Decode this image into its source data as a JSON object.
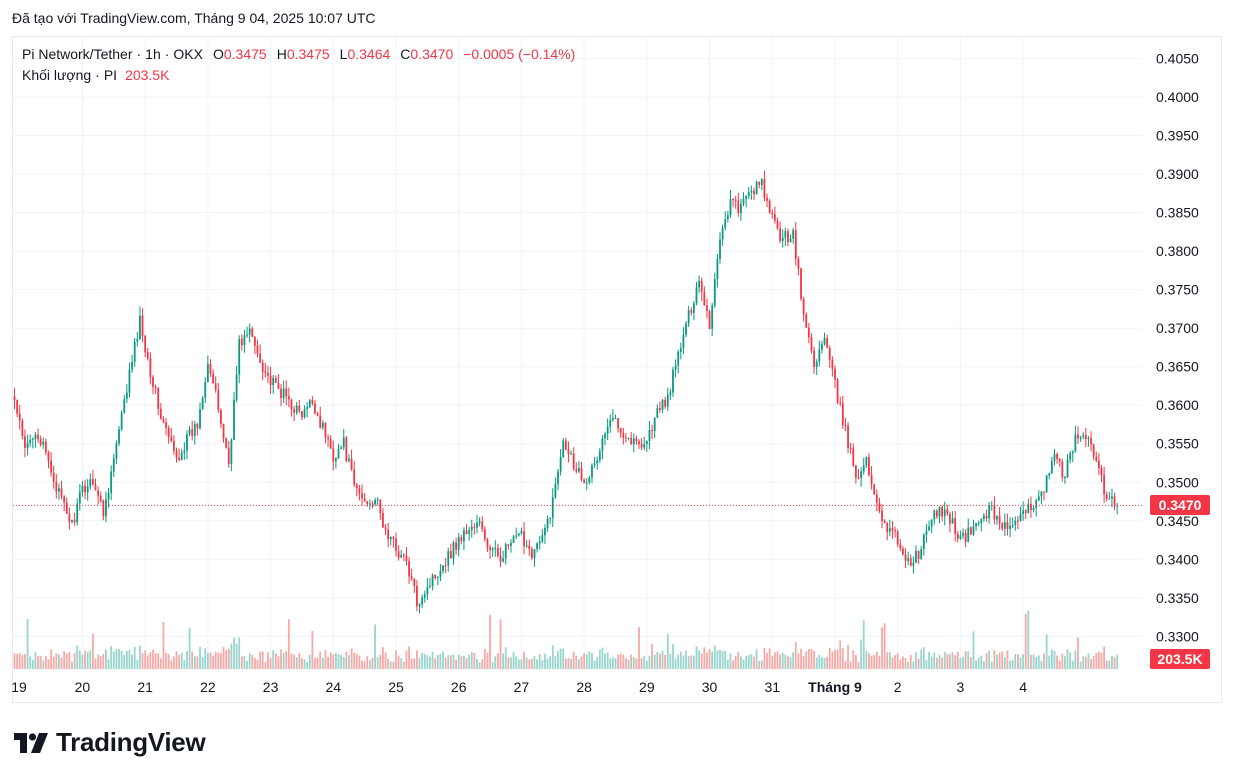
{
  "caption": "Đã tạo với TradingView.com, Tháng 9 04, 2025 10:07 UTC",
  "legend": {
    "symbol": "Pi Network/Tether",
    "interval": "1h",
    "exchange": "OKX",
    "open_label": "O",
    "open": "0.3475",
    "high_label": "H",
    "high": "0.3475",
    "low_label": "L",
    "low": "0.3464",
    "close_label": "C",
    "close": "0.3470",
    "change": "−0.0005 (−0.14%)",
    "volume_label": "Khối lượng",
    "volume_unit": "PI",
    "volume_value": "203.5K"
  },
  "price_tag": "0.3470",
  "volume_tag": "203.5K",
  "logo_text": "TradingView",
  "colors": {
    "up": "#089981",
    "down": "#f23645",
    "up_volume": "#98d5cc",
    "down_volume": "#f7a9a7",
    "grid": "#f0f3fa",
    "text": "#131722"
  },
  "chart_data": {
    "type": "candlestick",
    "interval": "1h",
    "y_axis": {
      "ticks": [
        "0.4050",
        "0.4000",
        "0.3950",
        "0.3900",
        "0.3850",
        "0.3800",
        "0.3750",
        "0.3700",
        "0.3650",
        "0.3600",
        "0.3550",
        "0.3500",
        "0.3450",
        "0.3400",
        "0.3350",
        "0.3300"
      ],
      "ylim": [
        0.3255,
        0.4078
      ]
    },
    "x_axis": {
      "ticks": [
        "19",
        "20",
        "21",
        "22",
        "23",
        "24",
        "25",
        "26",
        "27",
        "28",
        "29",
        "30",
        "31",
        "Tháng 9",
        "2",
        "3",
        "4"
      ],
      "bold": [
        "Tháng 9"
      ]
    },
    "last_price": 0.347,
    "last_volume_k": 203.5,
    "volume_ylim": [
      0,
      140
    ],
    "anchors": [
      [
        0,
        0.3605
      ],
      [
        4,
        0.354
      ],
      [
        8,
        0.357
      ],
      [
        12,
        0.3535
      ],
      [
        18,
        0.3475
      ],
      [
        22,
        0.3445
      ],
      [
        26,
        0.349
      ],
      [
        30,
        0.3505
      ],
      [
        34,
        0.346
      ],
      [
        40,
        0.3565
      ],
      [
        44,
        0.364
      ],
      [
        48,
        0.371
      ],
      [
        52,
        0.3645
      ],
      [
        56,
        0.3585
      ],
      [
        62,
        0.353
      ],
      [
        66,
        0.3555
      ],
      [
        70,
        0.3575
      ],
      [
        74,
        0.366
      ],
      [
        78,
        0.3595
      ],
      [
        82,
        0.3525
      ],
      [
        86,
        0.368
      ],
      [
        90,
        0.3695
      ],
      [
        94,
        0.366
      ],
      [
        98,
        0.363
      ],
      [
        104,
        0.361
      ],
      [
        110,
        0.3585
      ],
      [
        114,
        0.3605
      ],
      [
        118,
        0.357
      ],
      [
        122,
        0.3535
      ],
      [
        126,
        0.355
      ],
      [
        130,
        0.3495
      ],
      [
        134,
        0.3475
      ],
      [
        138,
        0.348
      ],
      [
        142,
        0.3435
      ],
      [
        146,
        0.3415
      ],
      [
        150,
        0.3395
      ],
      [
        154,
        0.3345
      ],
      [
        158,
        0.3365
      ],
      [
        162,
        0.3385
      ],
      [
        166,
        0.3405
      ],
      [
        170,
        0.3425
      ],
      [
        174,
        0.344
      ],
      [
        178,
        0.3445
      ],
      [
        182,
        0.341
      ],
      [
        186,
        0.3405
      ],
      [
        190,
        0.342
      ],
      [
        194,
        0.343
      ],
      [
        198,
        0.341
      ],
      [
        202,
        0.3425
      ],
      [
        206,
        0.3475
      ],
      [
        210,
        0.356
      ],
      [
        214,
        0.3525
      ],
      [
        218,
        0.3505
      ],
      [
        222,
        0.352
      ],
      [
        226,
        0.3565
      ],
      [
        230,
        0.3585
      ],
      [
        234,
        0.356
      ],
      [
        238,
        0.355
      ],
      [
        242,
        0.3555
      ],
      [
        246,
        0.359
      ],
      [
        250,
        0.361
      ],
      [
        254,
        0.3665
      ],
      [
        258,
        0.3715
      ],
      [
        262,
        0.3765
      ],
      [
        266,
        0.3705
      ],
      [
        270,
        0.382
      ],
      [
        274,
        0.3865
      ],
      [
        278,
        0.3855
      ],
      [
        282,
        0.388
      ],
      [
        286,
        0.3885
      ],
      [
        290,
        0.384
      ],
      [
        294,
        0.3815
      ],
      [
        298,
        0.3825
      ],
      [
        302,
        0.3715
      ],
      [
        306,
        0.3655
      ],
      [
        310,
        0.3685
      ],
      [
        314,
        0.3625
      ],
      [
        318,
        0.3565
      ],
      [
        322,
        0.351
      ],
      [
        326,
        0.3525
      ],
      [
        330,
        0.3475
      ],
      [
        334,
        0.344
      ],
      [
        338,
        0.3425
      ],
      [
        342,
        0.3395
      ],
      [
        346,
        0.3405
      ],
      [
        350,
        0.3445
      ],
      [
        354,
        0.3465
      ],
      [
        358,
        0.3455
      ],
      [
        362,
        0.3425
      ],
      [
        366,
        0.3435
      ],
      [
        370,
        0.3455
      ],
      [
        374,
        0.3465
      ],
      [
        378,
        0.3445
      ],
      [
        382,
        0.344
      ],
      [
        386,
        0.3455
      ],
      [
        390,
        0.3475
      ],
      [
        394,
        0.3495
      ],
      [
        398,
        0.353
      ],
      [
        402,
        0.351
      ],
      [
        406,
        0.3555
      ],
      [
        410,
        0.3565
      ],
      [
        414,
        0.3525
      ],
      [
        418,
        0.348
      ],
      [
        422,
        0.347
      ]
    ],
    "candle_count": 423
  }
}
